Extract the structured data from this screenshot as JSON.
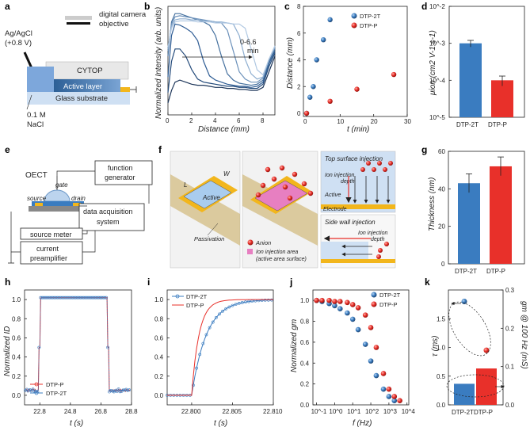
{
  "panels": {
    "a": {
      "letter": "a",
      "camera": [
        "digital camera",
        "objective"
      ],
      "ref_electrode": [
        "Ag/AgCl",
        "(+0.8 V)"
      ],
      "layers": [
        "CYTOP",
        "Active layer",
        "Glass substrate"
      ],
      "electrolyte": [
        "0.1 M",
        "NaCl"
      ]
    },
    "b": {
      "letter": "b",
      "annotation": [
        "0-6.6",
        "min"
      ]
    },
    "c": {
      "letter": "c"
    },
    "d": {
      "letter": "d"
    },
    "e": {
      "letter": "e",
      "labels": {
        "oect": "OECT",
        "gate": "gate",
        "source": "source",
        "drain": "drain",
        "fg": [
          "function",
          "generator"
        ],
        "daq": [
          "data acquisition",
          "system"
        ],
        "sm": "source meter",
        "amp": [
          "current",
          "preamplifier"
        ]
      }
    },
    "f": {
      "letter": "f",
      "labels": {
        "L": "L",
        "W": "W",
        "active": "Active",
        "passivation": "Passivation",
        "anion": "Anion",
        "ion_area": [
          "Ion injection area",
          "(active area surface)"
        ],
        "top_title": "Top surface injection",
        "top_depth": [
          "Ion injection",
          "depth"
        ],
        "top_active": "Active",
        "electrode": "Electrode",
        "side_title": "Side wall injection",
        "side_depth": [
          "Ion injection",
          "depth"
        ]
      }
    },
    "g": {
      "letter": "g"
    },
    "h": {
      "letter": "h"
    },
    "i": {
      "letter": "i"
    },
    "j": {
      "letter": "j"
    },
    "k": {
      "letter": "k"
    }
  },
  "colors": {
    "blue": "#3a7cc0",
    "red": "#e8302a",
    "darkblue": "#2c5f96"
  },
  "chart_data": [
    {
      "id": "b",
      "type": "line",
      "xlabel": "Distance (mm)",
      "ylabel": "Normalized Intensity (arb. units)",
      "xlim": [
        0,
        9
      ],
      "xticks": [
        0,
        2,
        4,
        6,
        8
      ],
      "series": [
        {
          "name": "t1",
          "x": [
            0,
            0.3,
            0.6,
            1,
            1.5,
            2,
            2.5,
            3,
            3.5,
            4,
            4.5,
            5,
            5.5,
            6,
            6.5,
            7,
            7.5,
            8,
            8.5,
            9
          ],
          "y": [
            0.1,
            0.22,
            0.3,
            0.32,
            0.3,
            0.28,
            0.27,
            0.27,
            0.26,
            0.25,
            0.25,
            0.24,
            0.24,
            0.23,
            0.23,
            0.22,
            0.22,
            0.25,
            0.4,
            0.55
          ]
        },
        {
          "name": "t2",
          "x": [
            0,
            0.3,
            0.6,
            1,
            1.5,
            2,
            2.5,
            3,
            3.5,
            4,
            4.5,
            5,
            5.5,
            6,
            6.5,
            7,
            7.5,
            8,
            8.5,
            9
          ],
          "y": [
            0.2,
            0.5,
            0.62,
            0.62,
            0.55,
            0.42,
            0.33,
            0.3,
            0.29,
            0.28,
            0.27,
            0.26,
            0.26,
            0.25,
            0.25,
            0.24,
            0.24,
            0.28,
            0.45,
            0.58
          ]
        },
        {
          "name": "t3",
          "x": [
            0,
            0.3,
            0.6,
            1,
            1.5,
            2,
            2.5,
            3,
            3.5,
            4,
            4.5,
            5,
            5.5,
            6,
            6.5,
            7,
            7.5,
            8,
            8.5,
            9
          ],
          "y": [
            0.35,
            0.75,
            0.86,
            0.85,
            0.82,
            0.78,
            0.7,
            0.5,
            0.36,
            0.32,
            0.3,
            0.28,
            0.27,
            0.26,
            0.26,
            0.25,
            0.26,
            0.3,
            0.48,
            0.6
          ]
        },
        {
          "name": "t4",
          "x": [
            0,
            0.3,
            0.6,
            1,
            1.5,
            2,
            2.5,
            3,
            3.5,
            4,
            4.5,
            5,
            5.5,
            6,
            6.5,
            7,
            7.5,
            8,
            8.5,
            9
          ],
          "y": [
            0.55,
            0.88,
            0.96,
            0.96,
            0.94,
            0.92,
            0.9,
            0.88,
            0.85,
            0.75,
            0.55,
            0.38,
            0.32,
            0.29,
            0.28,
            0.27,
            0.28,
            0.32,
            0.5,
            0.62
          ]
        },
        {
          "name": "t5",
          "x": [
            0,
            0.3,
            0.6,
            1,
            1.5,
            2,
            2.5,
            3,
            3.5,
            4,
            4.5,
            5,
            5.5,
            6,
            6.5,
            7,
            7.5,
            8,
            8.5,
            9
          ],
          "y": [
            0.6,
            0.86,
            0.93,
            0.94,
            0.93,
            0.92,
            0.91,
            0.9,
            0.89,
            0.88,
            0.87,
            0.8,
            0.6,
            0.4,
            0.33,
            0.3,
            0.3,
            0.34,
            0.52,
            0.63
          ]
        },
        {
          "name": "t6",
          "x": [
            0,
            0.3,
            0.6,
            1,
            1.5,
            2,
            2.5,
            3,
            3.5,
            4,
            4.5,
            5,
            5.5,
            6,
            6.5,
            7,
            7.5,
            8,
            8.5,
            9
          ],
          "y": [
            0.62,
            0.84,
            0.9,
            0.91,
            0.91,
            0.9,
            0.9,
            0.89,
            0.89,
            0.88,
            0.88,
            0.87,
            0.86,
            0.75,
            0.52,
            0.38,
            0.33,
            0.35,
            0.52,
            0.64
          ]
        },
        {
          "name": "t7",
          "x": [
            0,
            0.3,
            0.6,
            1,
            1.5,
            2,
            2.5,
            3,
            3.5,
            4,
            4.5,
            5,
            5.5,
            6,
            6.5,
            7,
            7.5,
            8,
            8.5,
            9
          ],
          "y": [
            0.64,
            0.82,
            0.88,
            0.89,
            0.89,
            0.89,
            0.88,
            0.88,
            0.88,
            0.87,
            0.87,
            0.87,
            0.86,
            0.86,
            0.82,
            0.62,
            0.42,
            0.37,
            0.52,
            0.65
          ]
        }
      ]
    },
    {
      "id": "c",
      "type": "scatter",
      "xlabel": "t (min)",
      "ylabel": "Distance (mm)",
      "xlim": [
        0,
        30
      ],
      "ylim": [
        0,
        8
      ],
      "xticks": [
        0,
        10,
        20,
        30
      ],
      "yticks": [
        0,
        2,
        4,
        6,
        8
      ],
      "series": [
        {
          "name": "DTP-2T",
          "x": [
            0,
            1,
            2,
            3,
            5,
            7
          ],
          "y": [
            0,
            1.2,
            2,
            4,
            5.5,
            7
          ]
        },
        {
          "name": "DTP-P",
          "x": [
            0,
            7,
            15,
            26
          ],
          "y": [
            0,
            0.9,
            1.8,
            2.9
          ]
        }
      ]
    },
    {
      "id": "d",
      "type": "bar",
      "ylabel": "μion (cm2 V-1 s-1)",
      "yscale": "log",
      "ylim": [
        1e-05,
        0.01
      ],
      "yticks": [
        "10^-5",
        "10^-4",
        "10^-3",
        "10^-2"
      ],
      "categories": [
        "DTP-2T",
        "DTP-P"
      ],
      "values": [
        0.001,
        0.0001
      ],
      "errors": [
        0.0002,
        3e-05
      ]
    },
    {
      "id": "g",
      "type": "bar",
      "ylabel": "Thickness (nm)",
      "ylim": [
        0,
        60
      ],
      "yticks": [
        0,
        20,
        40,
        60
      ],
      "categories": [
        "DTP-2T",
        "DTP-P"
      ],
      "values": [
        43,
        52
      ],
      "errors": [
        5,
        5
      ]
    },
    {
      "id": "h",
      "type": "line",
      "xlabel": "t (s)",
      "ylabel": "Normalized ID",
      "xlim": [
        21.8,
        28.8
      ],
      "ylim": [
        -0.1,
        1.1
      ],
      "xticks": [
        22.8,
        24.8,
        26.8,
        28.8
      ],
      "yticks": [
        0.0,
        0.2,
        0.4,
        0.6,
        0.8,
        1.0
      ],
      "series": [
        {
          "name": "DTP-P"
        },
        {
          "name": "DTP-2T"
        }
      ]
    },
    {
      "id": "i",
      "type": "line",
      "xlabel": "t (s)",
      "xlim": [
        22.797,
        22.81
      ],
      "ylim": [
        -0.1,
        1.1
      ],
      "xticks": [
        22.8,
        22.805,
        22.81
      ],
      "yticks": [
        0.0,
        0.2,
        0.4,
        0.6,
        0.8,
        1.0
      ],
      "series": [
        {
          "name": "DTP-2T"
        },
        {
          "name": "DTP-P"
        }
      ]
    },
    {
      "id": "j",
      "type": "scatter",
      "xlabel": "f (Hz)",
      "ylabel": "Normalized gm",
      "xscale": "log",
      "ylim": [
        0,
        1.1
      ],
      "yticks": [
        0.0,
        0.2,
        0.4,
        0.6,
        0.8,
        1.0
      ],
      "xticks": [
        "10^-1",
        "10^0",
        "10^1",
        "10^2",
        "10^3",
        "10^4"
      ],
      "series": [
        {
          "name": "DTP-2T",
          "f": [
            0.1,
            0.2,
            0.5,
            1,
            2,
            5,
            10,
            20,
            50,
            100,
            200,
            500,
            1000,
            2000
          ],
          "y": [
            1.0,
            0.99,
            0.97,
            0.95,
            0.92,
            0.88,
            0.82,
            0.72,
            0.58,
            0.42,
            0.28,
            0.15,
            0.08,
            0.04
          ]
        },
        {
          "name": "DTP-P",
          "f": [
            0.1,
            0.2,
            0.5,
            1,
            2,
            5,
            10,
            20,
            50,
            100,
            200,
            500,
            1000,
            2000,
            4000
          ],
          "y": [
            1.0,
            1.0,
            1.0,
            0.99,
            0.99,
            0.98,
            0.96,
            0.93,
            0.86,
            0.74,
            0.55,
            0.3,
            0.15,
            0.08,
            0.04
          ]
        }
      ]
    },
    {
      "id": "k",
      "type": "bar+scatter",
      "ylabel": "τ (ms)",
      "y2label": "gm @ 100 Hz (mS)",
      "ylim": [
        0,
        2.0
      ],
      "yticks": [
        0.0,
        0.5,
        1.0,
        1.5
      ],
      "y2lim": [
        0,
        0.3
      ],
      "y2ticks": [
        0.0,
        0.1,
        0.2,
        0.3
      ],
      "categories": [
        "DTP-2T",
        "DTP-P"
      ],
      "tau": [
        1.8,
        0.95
      ],
      "gm": [
        0.055,
        0.095
      ]
    }
  ]
}
